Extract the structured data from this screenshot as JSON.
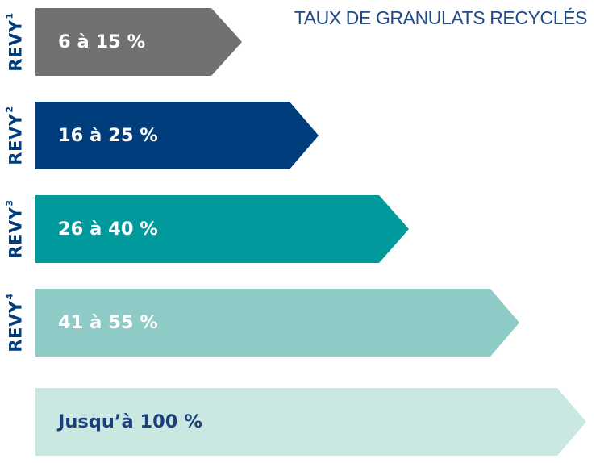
{
  "title": "TAUX DE GRANULATS RECYCLÉS",
  "levels": [
    {
      "label_main": "REVY",
      "label_sup": "1",
      "range": "6 à 15 %",
      "fill_color": "#707173",
      "text_color": "#ffffff"
    },
    {
      "label_main": "REVY",
      "label_sup": "2",
      "range": "16 à 25 %",
      "fill_color": "#003d7d",
      "text_color": "#ffffff"
    },
    {
      "label_main": "REVY",
      "label_sup": "3",
      "range": "26 à 40 %",
      "fill_color": "#009a9c",
      "text_color": "#ffffff"
    },
    {
      "label_main": "REVY",
      "label_sup": "4",
      "range": "41 à 55 %",
      "fill_color": "#8ecac6",
      "text_color": "#ffffff"
    },
    {
      "label_main": "",
      "label_sup": "",
      "range": "Jusqu’à 100 %",
      "fill_color": "#cbe7e2",
      "text_color": "#1b3f7a"
    }
  ]
}
